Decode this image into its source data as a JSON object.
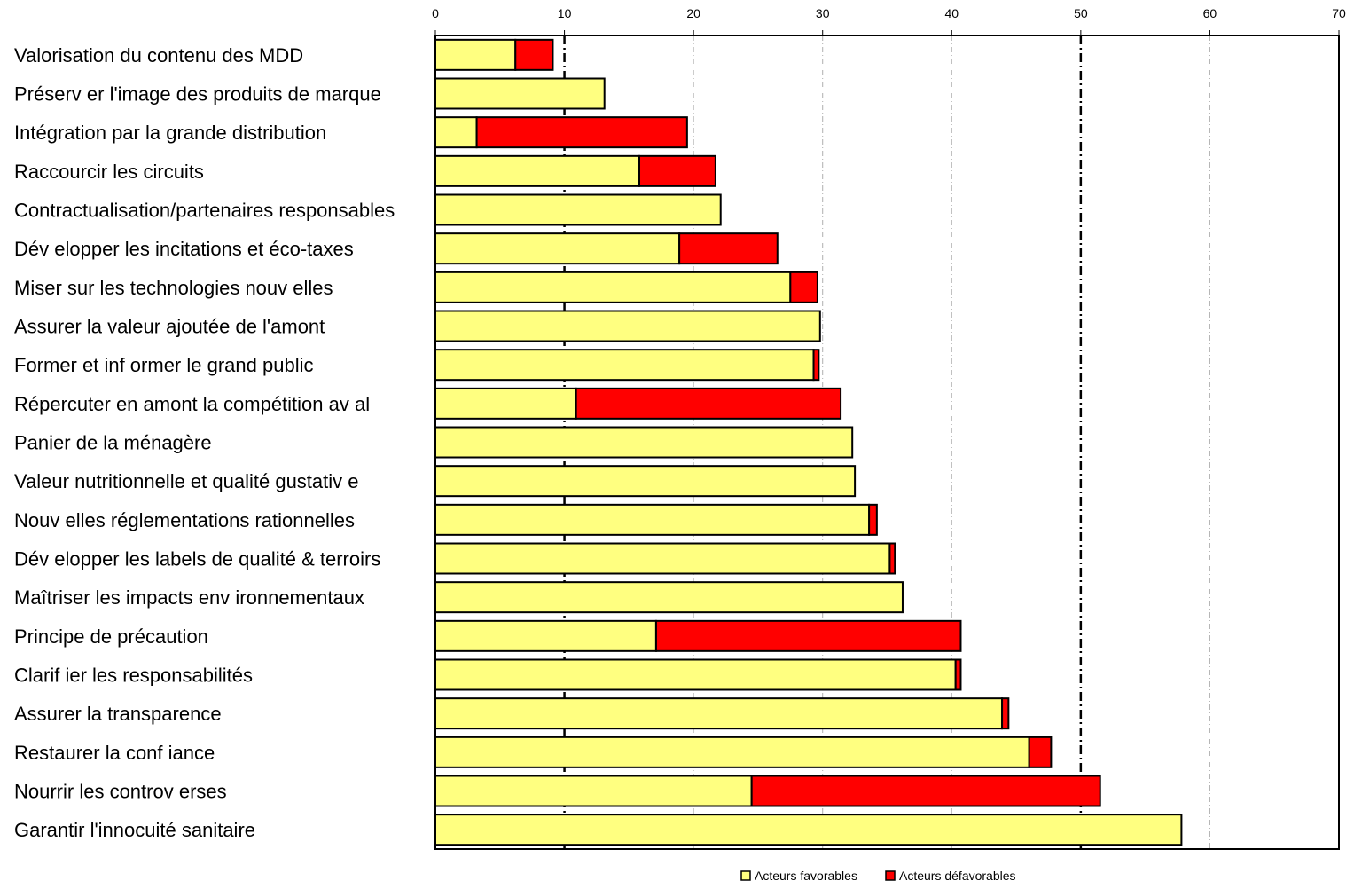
{
  "chart_data": {
    "type": "bar",
    "orientation": "horizontal",
    "stacked": true,
    "title": "",
    "xlabel": "",
    "ylabel": "",
    "xlim": [
      0,
      70
    ],
    "x_ticks": [
      "0",
      "10",
      "20",
      "30",
      "40",
      "50",
      "60",
      "70"
    ],
    "x_axis_position": "top",
    "grid": "vertical dash-dot lines",
    "legend_position": "bottom",
    "categories": [
      "Valorisation du contenu des MDD",
      "Préserv er l'image des produits de marque",
      "Intégration par la grande distribution",
      "Raccourcir les circuits",
      "Contractualisation/partenaires responsables",
      "Dév elopper les incitations et éco-taxes",
      "Miser sur les technologies nouv elles",
      "Assurer la valeur ajoutée de l'amont",
      "Former et inf ormer le grand public",
      "Répercuter en amont la compétition av al",
      "Panier de la ménagère",
      "Valeur nutritionnelle et qualité gustativ e",
      "Nouv elles réglementations rationnelles",
      "Dév elopper les labels de qualité & terroirs",
      "Maîtriser les impacts env ironnementaux",
      "Principe de précaution",
      "Clarif ier les responsabilités",
      "Assurer la transparence",
      "Restaurer la conf iance",
      "Nourrir les controv erses",
      "Garantir l'innocuité sanitaire"
    ],
    "series": [
      {
        "name": "Acteurs favorables",
        "color": "#FFFF80",
        "values": [
          6.2,
          13.1,
          3.2,
          15.8,
          22.1,
          18.9,
          27.5,
          29.8,
          29.3,
          10.9,
          32.3,
          32.5,
          33.6,
          35.2,
          36.2,
          17.1,
          40.3,
          43.9,
          46.0,
          24.5,
          57.8
        ]
      },
      {
        "name": "Acteurs défavorables",
        "color": "#FF0000",
        "values": [
          2.9,
          0,
          16.3,
          5.9,
          0,
          7.6,
          2.1,
          0,
          0.4,
          20.5,
          0,
          0,
          0.6,
          0.4,
          0,
          23.6,
          0.4,
          0.5,
          1.7,
          27.0,
          0
        ]
      }
    ]
  },
  "legend": {
    "items": [
      "Acteurs favorables",
      "Acteurs défavorables"
    ]
  }
}
